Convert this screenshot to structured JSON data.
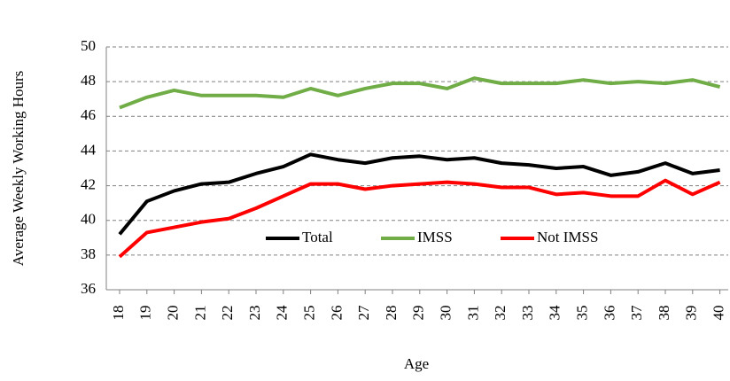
{
  "chart_data": {
    "type": "line",
    "x_label": "Age",
    "y_label": "Average Weekly Working Hours",
    "categories": [
      "18",
      "19",
      "20",
      "21",
      "22",
      "23",
      "24",
      "25",
      "26",
      "27",
      "28",
      "29",
      "30",
      "31",
      "32",
      "33",
      "34",
      "35",
      "36",
      "37",
      "38",
      "39",
      "40"
    ],
    "series": [
      {
        "name": "Total",
        "color": "#000000",
        "values": [
          39.2,
          41.1,
          41.7,
          42.1,
          42.2,
          42.7,
          43.1,
          43.8,
          43.5,
          43.3,
          43.6,
          43.7,
          43.5,
          43.6,
          43.3,
          43.2,
          43.0,
          43.1,
          42.6,
          42.8,
          43.3,
          42.7,
          42.9
        ]
      },
      {
        "name": "IMSS",
        "color": "#70ad47",
        "values": [
          46.5,
          47.1,
          47.5,
          47.2,
          47.2,
          47.2,
          47.1,
          47.6,
          47.2,
          47.6,
          47.9,
          47.9,
          47.6,
          48.2,
          47.9,
          47.9,
          47.9,
          48.1,
          47.9,
          48.0,
          47.9,
          48.1,
          47.7
        ]
      },
      {
        "name": "Not IMSS",
        "color": "#ff0000",
        "values": [
          37.9,
          39.3,
          39.6,
          39.9,
          40.1,
          40.7,
          41.4,
          42.1,
          42.1,
          41.8,
          42.0,
          42.1,
          42.2,
          42.1,
          41.9,
          41.9,
          41.5,
          41.6,
          41.4,
          41.4,
          42.3,
          41.5,
          42.2
        ]
      }
    ],
    "ylim": [
      36,
      50
    ],
    "yticks": [
      36,
      38,
      40,
      42,
      44,
      46,
      48,
      50
    ],
    "grid": true,
    "legend": "center"
  }
}
